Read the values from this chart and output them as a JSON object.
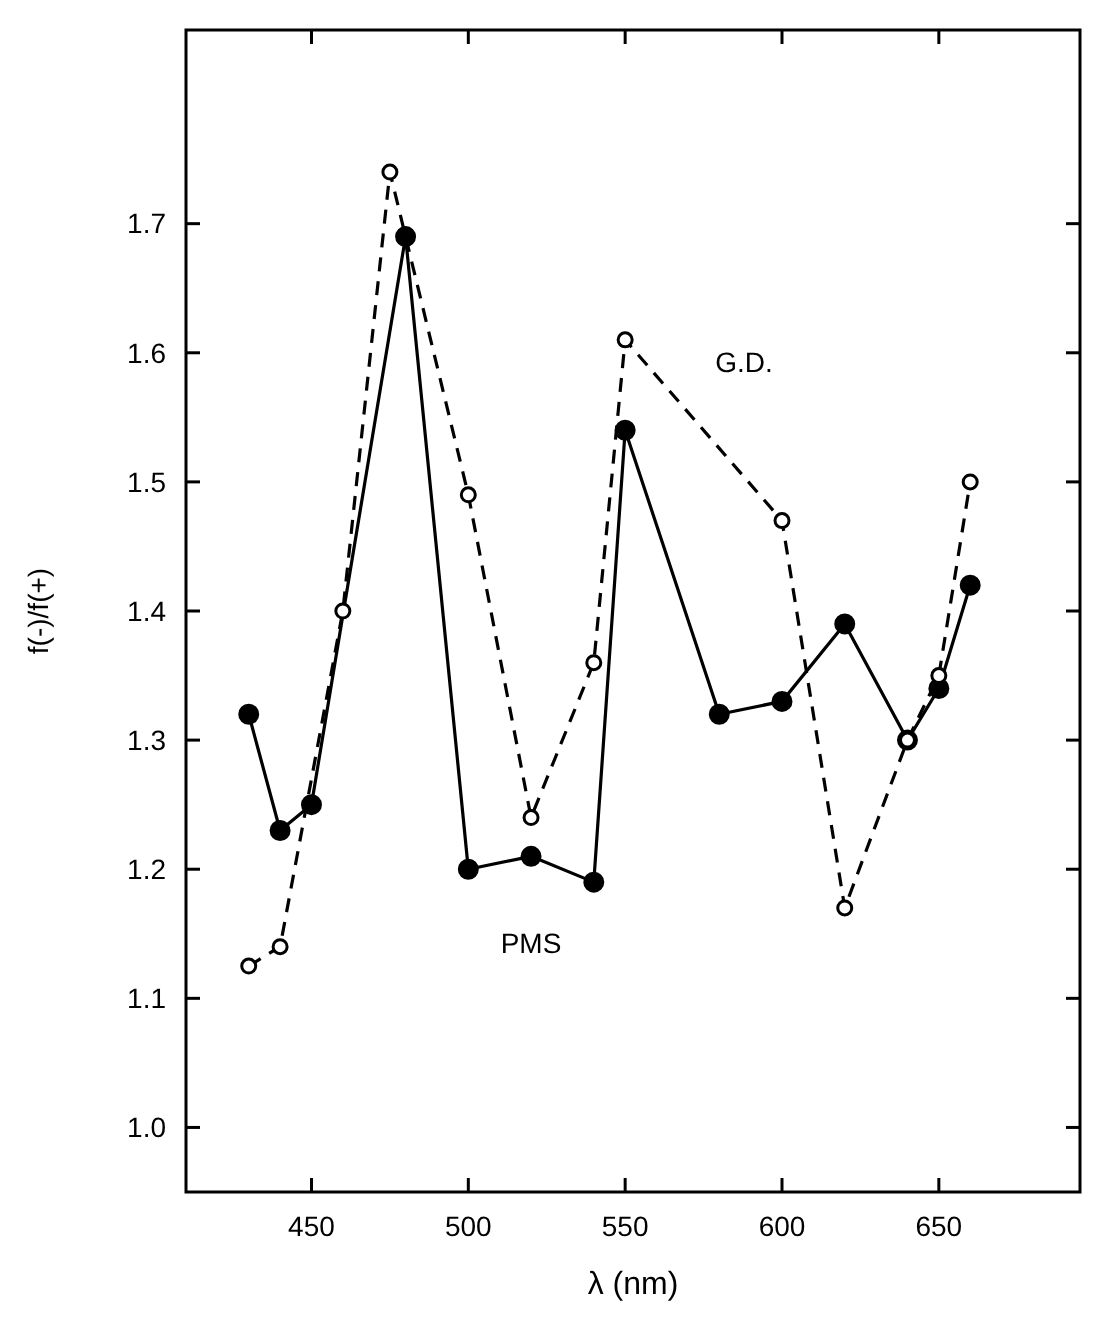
{
  "chart_data": {
    "type": "line",
    "xlabel": "λ (nm)",
    "ylabel": "f(-)/f(+)",
    "xlim": [
      410,
      695
    ],
    "ylim": [
      0.95,
      1.85
    ],
    "xticks": [
      450,
      500,
      550,
      600,
      650
    ],
    "yticks": [
      {
        "value": 1.0,
        "label": "1.0"
      },
      {
        "value": 1.1,
        "label": "1.1"
      },
      {
        "value": 1.2,
        "label": "1.2"
      },
      {
        "value": 1.3,
        "label": "1.3"
      },
      {
        "value": 1.4,
        "label": "1.4"
      },
      {
        "value": 1.5,
        "label": "1.5"
      },
      {
        "value": 1.6,
        "label": "1.6"
      },
      {
        "value": 1.7,
        "label": "1.7"
      }
    ],
    "grid": false,
    "marker": "circle",
    "series": [
      {
        "name": "PMS",
        "color": "#000000",
        "line_style": "solid",
        "x": [
          430,
          440,
          450,
          480,
          500,
          520,
          540,
          550,
          580,
          600,
          620,
          640,
          650,
          660
        ],
        "values": [
          1.32,
          1.23,
          1.25,
          1.69,
          1.2,
          1.21,
          1.19,
          1.54,
          1.32,
          1.33,
          1.39,
          1.3,
          1.34,
          1.42
        ]
      },
      {
        "name": "G.D.",
        "color": "#000000",
        "line_style": "dashed",
        "x": [
          430,
          440,
          460,
          475,
          500,
          520,
          540,
          550,
          600,
          620,
          640,
          650,
          660
        ],
        "values": [
          1.125,
          1.14,
          1.4,
          1.74,
          1.49,
          1.24,
          1.36,
          1.61,
          1.47,
          1.17,
          1.3,
          1.35,
          1.5
        ]
      }
    ]
  }
}
